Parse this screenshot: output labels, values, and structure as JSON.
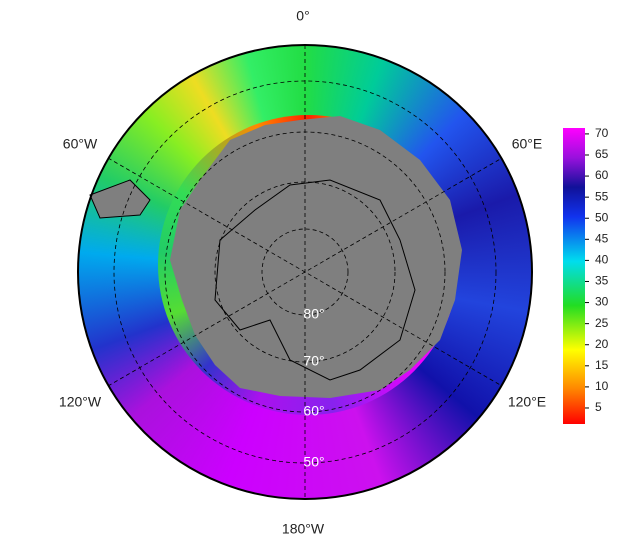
{
  "map": {
    "longitude_labels": [
      "0°",
      "60°E",
      "120°E",
      "180°W",
      "120°W",
      "60°W"
    ],
    "latitude_labels": [
      "80°",
      "70°",
      "60°",
      "50°"
    ]
  },
  "colorbar": {
    "lim": [
      1.2,
      71.4
    ],
    "ticks": [
      5,
      10,
      15,
      20,
      25,
      30,
      35,
      40,
      45,
      50,
      55,
      60,
      65,
      70
    ]
  }
}
